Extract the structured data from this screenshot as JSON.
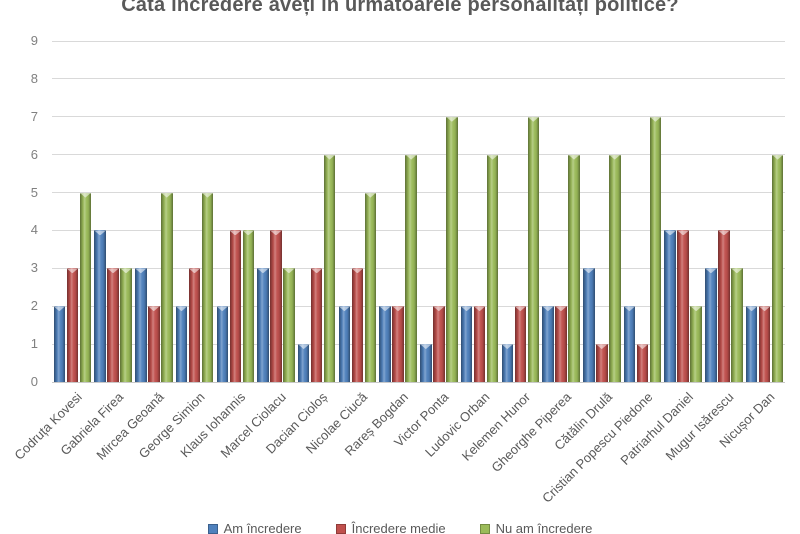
{
  "chart_data": {
    "type": "bar",
    "title": "Câtă încredere aveți în următoarele personalități politice?",
    "categories": [
      "Codruța Kovesi",
      "Gabriela Firea",
      "Mircea Geoană",
      "George Simion",
      "Klaus Iohannis",
      "Marcel Ciolacu",
      "Dacian Cioloș",
      "Nicolae Ciucă",
      "Rareș Bogdan",
      "Victor Ponta",
      "Ludovic Orban",
      "Kelemen Hunor",
      "Gheorghe Piperea",
      "Cătălin Drulă",
      "Cristian Popescu Piedone",
      "Patriarhul Daniel",
      "Mugur Isărescu",
      "Nicușor Dan"
    ],
    "series": [
      {
        "name": "Am încredere",
        "color": "#4F81BD",
        "values": [
          2,
          4,
          3,
          2,
          2,
          3,
          1,
          2,
          2,
          1,
          2,
          1,
          2,
          3,
          2,
          4,
          3,
          2
        ]
      },
      {
        "name": "Încredere medie",
        "color": "#C0504D",
        "values": [
          3,
          3,
          2,
          3,
          4,
          4,
          3,
          3,
          2,
          2,
          2,
          2,
          2,
          1,
          1,
          4,
          4,
          2
        ]
      },
      {
        "name": "Nu am încredere",
        "color": "#9BBB59",
        "values": [
          5,
          3,
          5,
          5,
          4,
          3,
          6,
          5,
          6,
          7,
          6,
          7,
          6,
          6,
          7,
          2,
          3,
          6
        ]
      }
    ],
    "ylim": [
      0,
      9
    ],
    "yticks": [
      0,
      1,
      2,
      3,
      4,
      5,
      6,
      7,
      8,
      9
    ],
    "grid": true,
    "legend_position": "bottom",
    "colors": {
      "grid": "#D9D9D9",
      "axis_text": "#808080",
      "category_text": "#595959",
      "title_text": "#595959"
    }
  }
}
